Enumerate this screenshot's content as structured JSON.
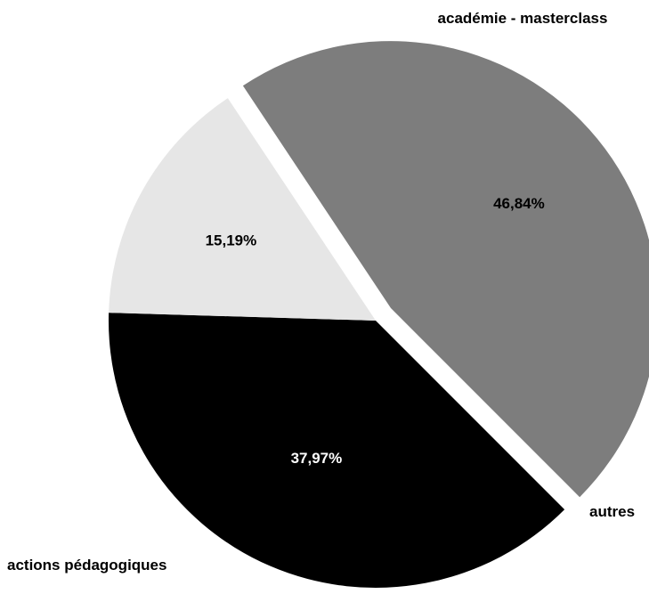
{
  "chart_data": {
    "type": "pie",
    "title": "",
    "slices": [
      {
        "name": "académie - masterclass",
        "value": 37.97,
        "value_label": "37,97%",
        "color": "#000000",
        "label_color": "#ffffff",
        "exploded": false
      },
      {
        "name": "autres",
        "value": 15.19,
        "value_label": "15,19%",
        "color": "#e6e6e6",
        "label_color": "#000000",
        "exploded": false
      },
      {
        "name": "actions pédagogiques",
        "value": 46.84,
        "value_label": "46,84%",
        "color": "#7d7d7d",
        "label_color": "#000000",
        "exploded": true
      }
    ],
    "legend": "none",
    "start_angle_deg": 135,
    "direction": "clockwise"
  }
}
